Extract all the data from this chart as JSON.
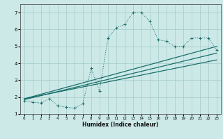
{
  "xlabel": "Humidex (Indice chaleur)",
  "bg_color": "#cce9e8",
  "grid_color": "#aacfce",
  "line_color": "#1a6e6a",
  "ylim": [
    1,
    7.5
  ],
  "xlim": [
    -0.5,
    23.5
  ],
  "yticks": [
    1,
    2,
    3,
    4,
    5,
    6,
    7
  ],
  "xticks": [
    0,
    1,
    2,
    3,
    4,
    5,
    6,
    7,
    8,
    9,
    10,
    11,
    12,
    13,
    14,
    15,
    16,
    17,
    18,
    19,
    20,
    21,
    22,
    23
  ],
  "series1_x": [
    0,
    1,
    2,
    3,
    4,
    5,
    6,
    7,
    8,
    9,
    10,
    11,
    12,
    13,
    14,
    15,
    16,
    17,
    18,
    19,
    20,
    21,
    22,
    23
  ],
  "series1_y": [
    1.8,
    1.7,
    1.65,
    1.9,
    1.5,
    1.4,
    1.35,
    1.6,
    3.7,
    2.35,
    5.5,
    6.1,
    6.3,
    7.0,
    7.0,
    6.5,
    5.4,
    5.3,
    5.0,
    5.0,
    5.5,
    5.5,
    5.5,
    4.8
  ],
  "reg_lines": [
    {
      "x0": 0,
      "y0": 1.9,
      "x1": 23,
      "y1": 5.0
    },
    {
      "x0": 0,
      "y0": 1.85,
      "x1": 23,
      "y1": 4.6
    },
    {
      "x0": 0,
      "y0": 1.9,
      "x1": 23,
      "y1": 4.2
    }
  ]
}
